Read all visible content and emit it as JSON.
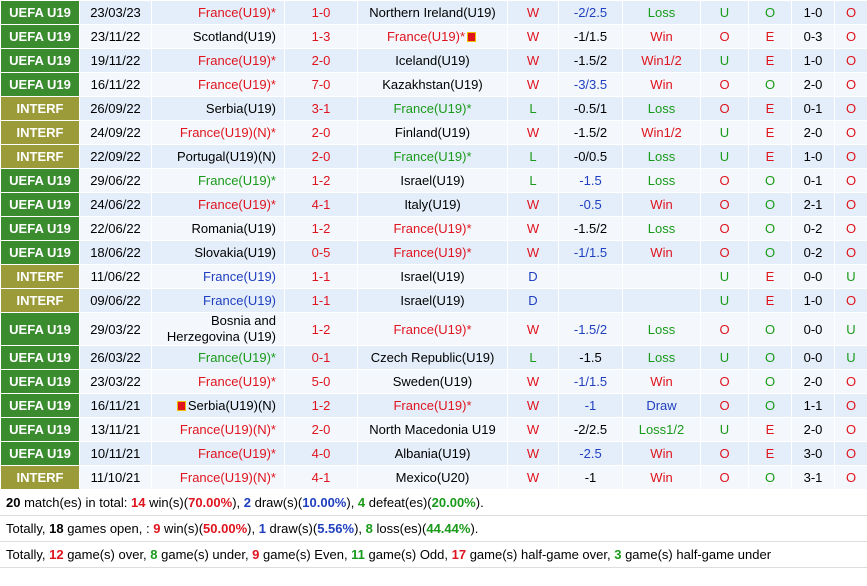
{
  "matches": [
    {
      "comp": "UEFA U19",
      "type": "uefa",
      "date": "23/03/23",
      "home": "France(U19)*",
      "home_c": "red",
      "score": "1-0",
      "away": "Northern Ireland(U19)",
      "away_c": "",
      "wl": "W",
      "wl_c": "red",
      "hcap": "-2/2.5",
      "hcap_c": "blue",
      "res": "Loss",
      "res_c": "green",
      "ue": "U",
      "ue_c": "green",
      "oe": "O",
      "oe_c": "green",
      "ht": "1-0",
      "ou": "O",
      "ou_c": "red"
    },
    {
      "comp": "UEFA U19",
      "type": "uefa",
      "date": "23/11/22",
      "home": "Scotland(U19)",
      "home_c": "",
      "score": "1-3",
      "away": "France(U19)*",
      "away_c": "red",
      "away_flag": true,
      "wl": "W",
      "wl_c": "red",
      "hcap": "-1/1.5",
      "hcap_c": "",
      "res": "Win",
      "res_c": "red",
      "ue": "O",
      "ue_c": "red",
      "oe": "E",
      "oe_c": "red",
      "ht": "0-3",
      "ou": "O",
      "ou_c": "red"
    },
    {
      "comp": "UEFA U19",
      "type": "uefa",
      "date": "19/11/22",
      "home": "France(U19)*",
      "home_c": "red",
      "score": "2-0",
      "away": "Iceland(U19)",
      "away_c": "",
      "wl": "W",
      "wl_c": "red",
      "hcap": "-1.5/2",
      "hcap_c": "",
      "res": "Win1/2",
      "res_c": "red",
      "ue": "U",
      "ue_c": "green",
      "oe": "E",
      "oe_c": "red",
      "ht": "1-0",
      "ou": "O",
      "ou_c": "red"
    },
    {
      "comp": "UEFA U19",
      "type": "uefa",
      "date": "16/11/22",
      "home": "France(U19)*",
      "home_c": "red",
      "score": "7-0",
      "away": "Kazakhstan(U19)",
      "away_c": "",
      "wl": "W",
      "wl_c": "red",
      "hcap": "-3/3.5",
      "hcap_c": "blue",
      "res": "Win",
      "res_c": "red",
      "ue": "O",
      "ue_c": "red",
      "oe": "O",
      "oe_c": "green",
      "ht": "2-0",
      "ou": "O",
      "ou_c": "red"
    },
    {
      "comp": "INTERF",
      "type": "interf",
      "date": "26/09/22",
      "home": "Serbia(U19)",
      "home_c": "",
      "score": "3-1",
      "away": "France(U19)*",
      "away_c": "green",
      "wl": "L",
      "wl_c": "green",
      "hcap": "-0.5/1",
      "hcap_c": "",
      "res": "Loss",
      "res_c": "green",
      "ue": "O",
      "ue_c": "red",
      "oe": "E",
      "oe_c": "red",
      "ht": "0-1",
      "ou": "O",
      "ou_c": "red"
    },
    {
      "comp": "INTERF",
      "type": "interf",
      "date": "24/09/22",
      "home": "France(U19)(N)*",
      "home_c": "red",
      "score": "2-0",
      "away": "Finland(U19)",
      "away_c": "",
      "wl": "W",
      "wl_c": "red",
      "hcap": "-1.5/2",
      "hcap_c": "",
      "res": "Win1/2",
      "res_c": "red",
      "ue": "U",
      "ue_c": "green",
      "oe": "E",
      "oe_c": "red",
      "ht": "2-0",
      "ou": "O",
      "ou_c": "red"
    },
    {
      "comp": "INTERF",
      "type": "interf",
      "date": "22/09/22",
      "home": "Portugal(U19)(N)",
      "home_c": "",
      "score": "2-0",
      "away": "France(U19)*",
      "away_c": "green",
      "wl": "L",
      "wl_c": "green",
      "hcap": "-0/0.5",
      "hcap_c": "",
      "res": "Loss",
      "res_c": "green",
      "ue": "U",
      "ue_c": "green",
      "oe": "E",
      "oe_c": "red",
      "ht": "1-0",
      "ou": "O",
      "ou_c": "red"
    },
    {
      "comp": "UEFA U19",
      "type": "uefa",
      "date": "29/06/22",
      "home": "France(U19)*",
      "home_c": "green",
      "score": "1-2",
      "away": "Israel(U19)",
      "away_c": "",
      "wl": "L",
      "wl_c": "green",
      "hcap": "-1.5",
      "hcap_c": "blue",
      "res": "Loss",
      "res_c": "green",
      "ue": "O",
      "ue_c": "red",
      "oe": "O",
      "oe_c": "green",
      "ht": "0-1",
      "ou": "O",
      "ou_c": "red"
    },
    {
      "comp": "UEFA U19",
      "type": "uefa",
      "date": "24/06/22",
      "home": "France(U19)*",
      "home_c": "red",
      "score": "4-1",
      "away": "Italy(U19)",
      "away_c": "",
      "wl": "W",
      "wl_c": "red",
      "hcap": "-0.5",
      "hcap_c": "blue",
      "res": "Win",
      "res_c": "red",
      "ue": "O",
      "ue_c": "red",
      "oe": "O",
      "oe_c": "green",
      "ht": "2-1",
      "ou": "O",
      "ou_c": "red"
    },
    {
      "comp": "UEFA U19",
      "type": "uefa",
      "date": "22/06/22",
      "home": "Romania(U19)",
      "home_c": "",
      "score": "1-2",
      "away": "France(U19)*",
      "away_c": "red",
      "wl": "W",
      "wl_c": "red",
      "hcap": "-1.5/2",
      "hcap_c": "",
      "res": "Loss",
      "res_c": "green",
      "ue": "O",
      "ue_c": "red",
      "oe": "O",
      "oe_c": "green",
      "ht": "0-2",
      "ou": "O",
      "ou_c": "red"
    },
    {
      "comp": "UEFA U19",
      "type": "uefa",
      "date": "18/06/22",
      "home": "Slovakia(U19)",
      "home_c": "",
      "score": "0-5",
      "away": "France(U19)*",
      "away_c": "red",
      "wl": "W",
      "wl_c": "red",
      "hcap": "-1/1.5",
      "hcap_c": "blue",
      "res": "Win",
      "res_c": "red",
      "ue": "O",
      "ue_c": "red",
      "oe": "O",
      "oe_c": "green",
      "ht": "0-2",
      "ou": "O",
      "ou_c": "red"
    },
    {
      "comp": "INTERF",
      "type": "interf",
      "date": "11/06/22",
      "home": "France(U19)",
      "home_c": "blue",
      "score": "1-1",
      "away": "Israel(U19)",
      "away_c": "",
      "wl": "D",
      "wl_c": "blue",
      "hcap": "",
      "hcap_c": "",
      "res": "",
      "res_c": "",
      "ue": "U",
      "ue_c": "green",
      "oe": "E",
      "oe_c": "red",
      "ht": "0-0",
      "ou": "U",
      "ou_c": "green"
    },
    {
      "comp": "INTERF",
      "type": "interf",
      "date": "09/06/22",
      "home": "France(U19)",
      "home_c": "blue",
      "score": "1-1",
      "away": "Israel(U19)",
      "away_c": "",
      "wl": "D",
      "wl_c": "blue",
      "hcap": "",
      "hcap_c": "",
      "res": "",
      "res_c": "",
      "ue": "U",
      "ue_c": "green",
      "oe": "E",
      "oe_c": "red",
      "ht": "1-0",
      "ou": "O",
      "ou_c": "red"
    },
    {
      "comp": "UEFA U19",
      "type": "uefa",
      "date": "29/03/22",
      "home": "Bosnia and Herzegovina (U19)",
      "home_c": "",
      "home_wrap": true,
      "score": "1-2",
      "away": "France(U19)*",
      "away_c": "red",
      "wl": "W",
      "wl_c": "red",
      "hcap": "-1.5/2",
      "hcap_c": "blue",
      "res": "Loss",
      "res_c": "green",
      "ue": "O",
      "ue_c": "red",
      "oe": "O",
      "oe_c": "green",
      "ht": "0-0",
      "ou": "U",
      "ou_c": "green"
    },
    {
      "comp": "UEFA U19",
      "type": "uefa",
      "date": "26/03/22",
      "home": "France(U19)*",
      "home_c": "green",
      "score": "0-1",
      "away": "Czech Republic(U19)",
      "away_c": "",
      "wl": "L",
      "wl_c": "green",
      "hcap": "-1.5",
      "hcap_c": "",
      "res": "Loss",
      "res_c": "green",
      "ue": "U",
      "ue_c": "green",
      "oe": "O",
      "oe_c": "green",
      "ht": "0-0",
      "ou": "U",
      "ou_c": "green"
    },
    {
      "comp": "UEFA U19",
      "type": "uefa",
      "date": "23/03/22",
      "home": "France(U19)*",
      "home_c": "red",
      "score": "5-0",
      "away": "Sweden(U19)",
      "away_c": "",
      "wl": "W",
      "wl_c": "red",
      "hcap": "-1/1.5",
      "hcap_c": "blue",
      "res": "Win",
      "res_c": "red",
      "ue": "O",
      "ue_c": "red",
      "oe": "O",
      "oe_c": "green",
      "ht": "2-0",
      "ou": "O",
      "ou_c": "red"
    },
    {
      "comp": "UEFA U19",
      "type": "uefa",
      "date": "16/11/21",
      "home": "Serbia(U19)(N)",
      "home_c": "",
      "home_flag": true,
      "score": "1-2",
      "away": "France(U19)*",
      "away_c": "red",
      "wl": "W",
      "wl_c": "red",
      "hcap": "-1",
      "hcap_c": "blue",
      "res": "Draw",
      "res_c": "blue",
      "ue": "O",
      "ue_c": "red",
      "oe": "O",
      "oe_c": "green",
      "ht": "1-1",
      "ou": "O",
      "ou_c": "red"
    },
    {
      "comp": "UEFA U19",
      "type": "uefa",
      "date": "13/11/21",
      "home": "France(U19)(N)*",
      "home_c": "red",
      "score": "2-0",
      "away": "North Macedonia U19",
      "away_c": "",
      "wl": "W",
      "wl_c": "red",
      "hcap": "-2/2.5",
      "hcap_c": "",
      "res": "Loss1/2",
      "res_c": "green",
      "ue": "U",
      "ue_c": "green",
      "oe": "E",
      "oe_c": "red",
      "ht": "2-0",
      "ou": "O",
      "ou_c": "red"
    },
    {
      "comp": "UEFA U19",
      "type": "uefa",
      "date": "10/11/21",
      "home": "France(U19)*",
      "home_c": "red",
      "score": "4-0",
      "away": "Albania(U19)",
      "away_c": "",
      "wl": "W",
      "wl_c": "red",
      "hcap": "-2.5",
      "hcap_c": "blue",
      "res": "Win",
      "res_c": "red",
      "ue": "O",
      "ue_c": "red",
      "oe": "E",
      "oe_c": "red",
      "ht": "3-0",
      "ou": "O",
      "ou_c": "red"
    },
    {
      "comp": "INTERF",
      "type": "interf",
      "date": "11/10/21",
      "home": "France(U19)(N)*",
      "home_c": "red",
      "score": "4-1",
      "away": "Mexico(U20)",
      "away_c": "",
      "wl": "W",
      "wl_c": "red",
      "hcap": "-1",
      "hcap_c": "",
      "res": "Win",
      "res_c": "red",
      "ue": "O",
      "ue_c": "red",
      "oe": "O",
      "oe_c": "green",
      "ht": "3-1",
      "ou": "O",
      "ou_c": "red"
    }
  ],
  "summary": {
    "line1": {
      "total": "20",
      "t1": " match(es) in total: ",
      "wins": "14",
      "t2": " win(s)(",
      "winpct": "70.00%",
      "t3": "), ",
      "draws": "2",
      "t4": " draw(s)(",
      "drawpct": "10.00%",
      "t5": "), ",
      "defeats": "4",
      "t6": " defeat(es)(",
      "defeatpct": "20.00%",
      "t7": ")."
    },
    "line2": {
      "t0": "Totally, ",
      "open": "18",
      "t1": " games open, : ",
      "wins": "9",
      "t2": " win(s)(",
      "winpct": "50.00%",
      "t3": "), ",
      "draws": "1",
      "t4": " draw(s)(",
      "drawpct": "5.56%",
      "t5": "), ",
      "losses": "8",
      "t6": " loss(es)(",
      "losspct": "44.44%",
      "t7": ")."
    },
    "line3": {
      "t0": "Totally, ",
      "over": "12",
      "t1": " game(s) over, ",
      "under": "8",
      "t2": " game(s) under, ",
      "even": "9",
      "t3": " game(s) Even, ",
      "odd": "11",
      "t4": " game(s) Odd, ",
      "htover": "17",
      "t5": " game(s) half-game over, ",
      "htunder": "3",
      "t6": " game(s) half-game under"
    }
  }
}
